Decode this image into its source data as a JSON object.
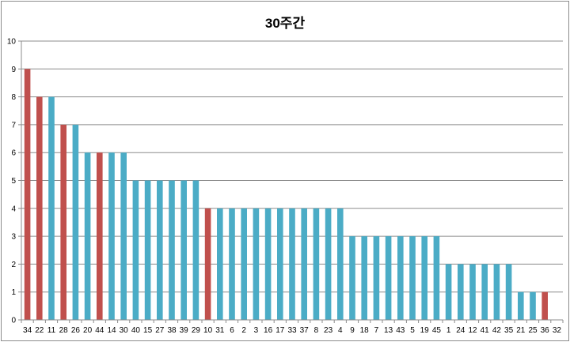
{
  "chart_data": {
    "type": "bar",
    "title": "30주간",
    "xlabel": "",
    "ylabel": "",
    "ylim": [
      0,
      10
    ],
    "yticks": [
      0,
      1,
      2,
      3,
      4,
      5,
      6,
      7,
      8,
      9,
      10
    ],
    "grid": true,
    "legend": "none",
    "colors": {
      "default": "#4bacc6",
      "highlight": "#c0504d"
    },
    "categories": [
      "34",
      "22",
      "11",
      "28",
      "26",
      "20",
      "44",
      "14",
      "30",
      "40",
      "15",
      "27",
      "38",
      "39",
      "29",
      "10",
      "31",
      "6",
      "2",
      "3",
      "16",
      "17",
      "33",
      "37",
      "8",
      "23",
      "4",
      "9",
      "18",
      "7",
      "13",
      "43",
      "5",
      "19",
      "45",
      "1",
      "24",
      "12",
      "41",
      "42",
      "35",
      "21",
      "25",
      "36",
      "32"
    ],
    "values": [
      9,
      8,
      8,
      7,
      7,
      6,
      6,
      6,
      6,
      5,
      5,
      5,
      5,
      5,
      5,
      4,
      4,
      4,
      4,
      4,
      4,
      4,
      4,
      4,
      4,
      4,
      4,
      3,
      3,
      3,
      3,
      3,
      3,
      3,
      3,
      2,
      2,
      2,
      2,
      2,
      2,
      1,
      1,
      1,
      0
    ],
    "highlighted": [
      "34",
      "22",
      "28",
      "44",
      "10",
      "36"
    ]
  }
}
